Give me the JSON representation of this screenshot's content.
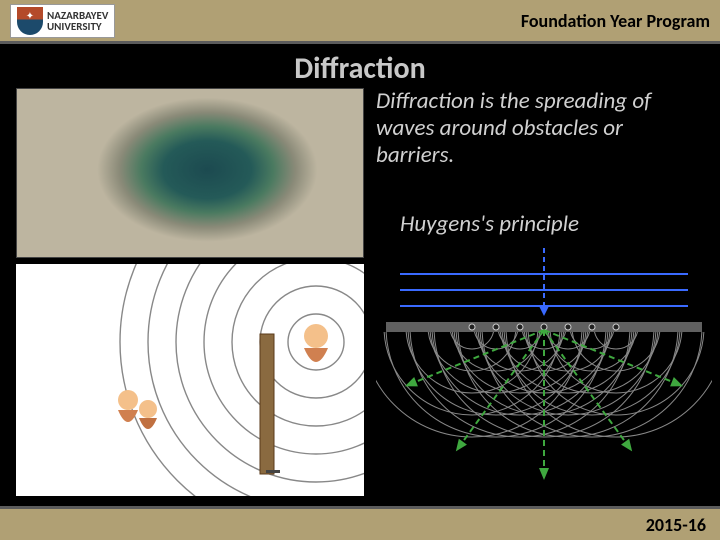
{
  "header": {
    "university_line1": "NAZARBAYEV",
    "university_line2": "UNIVERSITY",
    "program": "Foundation Year Program"
  },
  "slide": {
    "title": "Diffraction",
    "body": "Diffraction is the spreading of waves around obstacles or barriers.",
    "subtitle": "Huygens's principle"
  },
  "footer": {
    "year": "2015-16"
  },
  "colors": {
    "accent_bar": "#b0a074",
    "background": "#000000",
    "text_light": "#d0d0d0",
    "title_gray": "#c8c8c8",
    "huygens_green": "#3fa83f",
    "huygens_blue": "#3a6aff",
    "huygens_gray": "#888888",
    "huygens_dash": "#3a6aff",
    "sound_ring": "#888888",
    "sound_wall": "#6b4a2a"
  },
  "diagrams": {
    "sound_waves": {
      "type": "infographic",
      "ring_count": 7,
      "wall": true,
      "figures": 3
    },
    "huygens": {
      "type": "infographic",
      "incoming_lines": 3,
      "slit_sources": 7,
      "wavelet_rings_per_source": 5,
      "green_arrows": 5
    }
  }
}
